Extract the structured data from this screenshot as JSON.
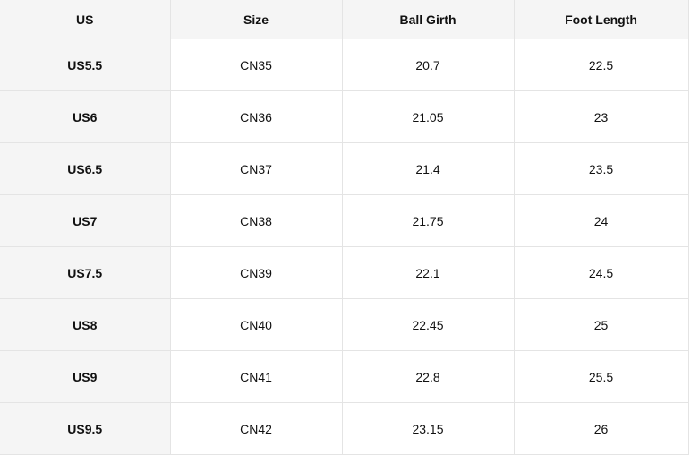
{
  "table": {
    "headers": [
      "US",
      "Size",
      "Ball Girth",
      "Foot Length"
    ],
    "rows": [
      [
        "US5.5",
        "CN35",
        "20.7",
        "22.5"
      ],
      [
        "US6",
        "CN36",
        "21.05",
        "23"
      ],
      [
        "US6.5",
        "CN37",
        "21.4",
        "23.5"
      ],
      [
        "US7",
        "CN38",
        "21.75",
        "24"
      ],
      [
        "US7.5",
        "CN39",
        "22.1",
        "24.5"
      ],
      [
        "US8",
        "CN40",
        "22.45",
        "25"
      ],
      [
        "US9",
        "CN41",
        "22.8",
        "25.5"
      ],
      [
        "US9.5",
        "CN42",
        "23.15",
        "26"
      ]
    ]
  }
}
